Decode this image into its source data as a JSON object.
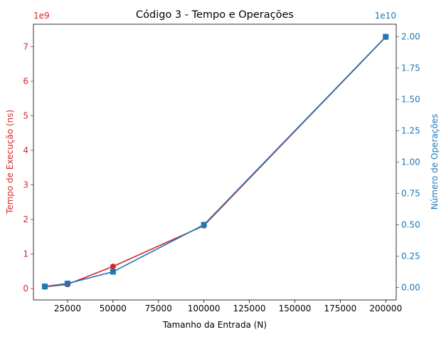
{
  "chart_data": {
    "type": "line",
    "title": "Código 3 - Tempo e Operações",
    "xlabel": "Tamanho da Entrada (N)",
    "x": [
      12500,
      25000,
      50000,
      100000,
      200000
    ],
    "xlim": [
      6250,
      205750
    ],
    "xticks": [
      25000,
      50000,
      75000,
      100000,
      125000,
      150000,
      175000,
      200000
    ],
    "xtick_labels": [
      "25000",
      "50000",
      "75000",
      "100000",
      "125000",
      "150000",
      "175000",
      "200000"
    ],
    "y_left": {
      "label": "Tempo de Execução (ns)",
      "offset_text": "1e9",
      "color": "#d62728",
      "lim": [
        -0.33,
        7.65
      ],
      "ticks": [
        0,
        1,
        2,
        3,
        4,
        5,
        6,
        7
      ],
      "tick_labels": [
        "0",
        "1",
        "2",
        "3",
        "4",
        "5",
        "6",
        "7"
      ]
    },
    "y_right": {
      "label": "Número de Operações",
      "offset_text": "1e10",
      "color": "#1f77b4",
      "lim": [
        -0.1,
        2.1
      ],
      "ticks": [
        0.0,
        0.25,
        0.5,
        0.75,
        1.0,
        1.25,
        1.5,
        1.75,
        2.0
      ],
      "tick_labels": [
        "0.00",
        "0.25",
        "0.50",
        "0.75",
        "1.00",
        "1.25",
        "1.50",
        "1.75",
        "2.00"
      ]
    },
    "series": [
      {
        "axis": "left",
        "color": "#d62728",
        "marker": "circle",
        "values": [
          0.05,
          0.12,
          0.64,
          1.82,
          7.28
        ]
      },
      {
        "axis": "right",
        "color": "#1f77b4",
        "marker": "square",
        "values": [
          0.0078,
          0.031,
          0.125,
          0.5,
          2.0
        ]
      }
    ],
    "grid": false
  }
}
